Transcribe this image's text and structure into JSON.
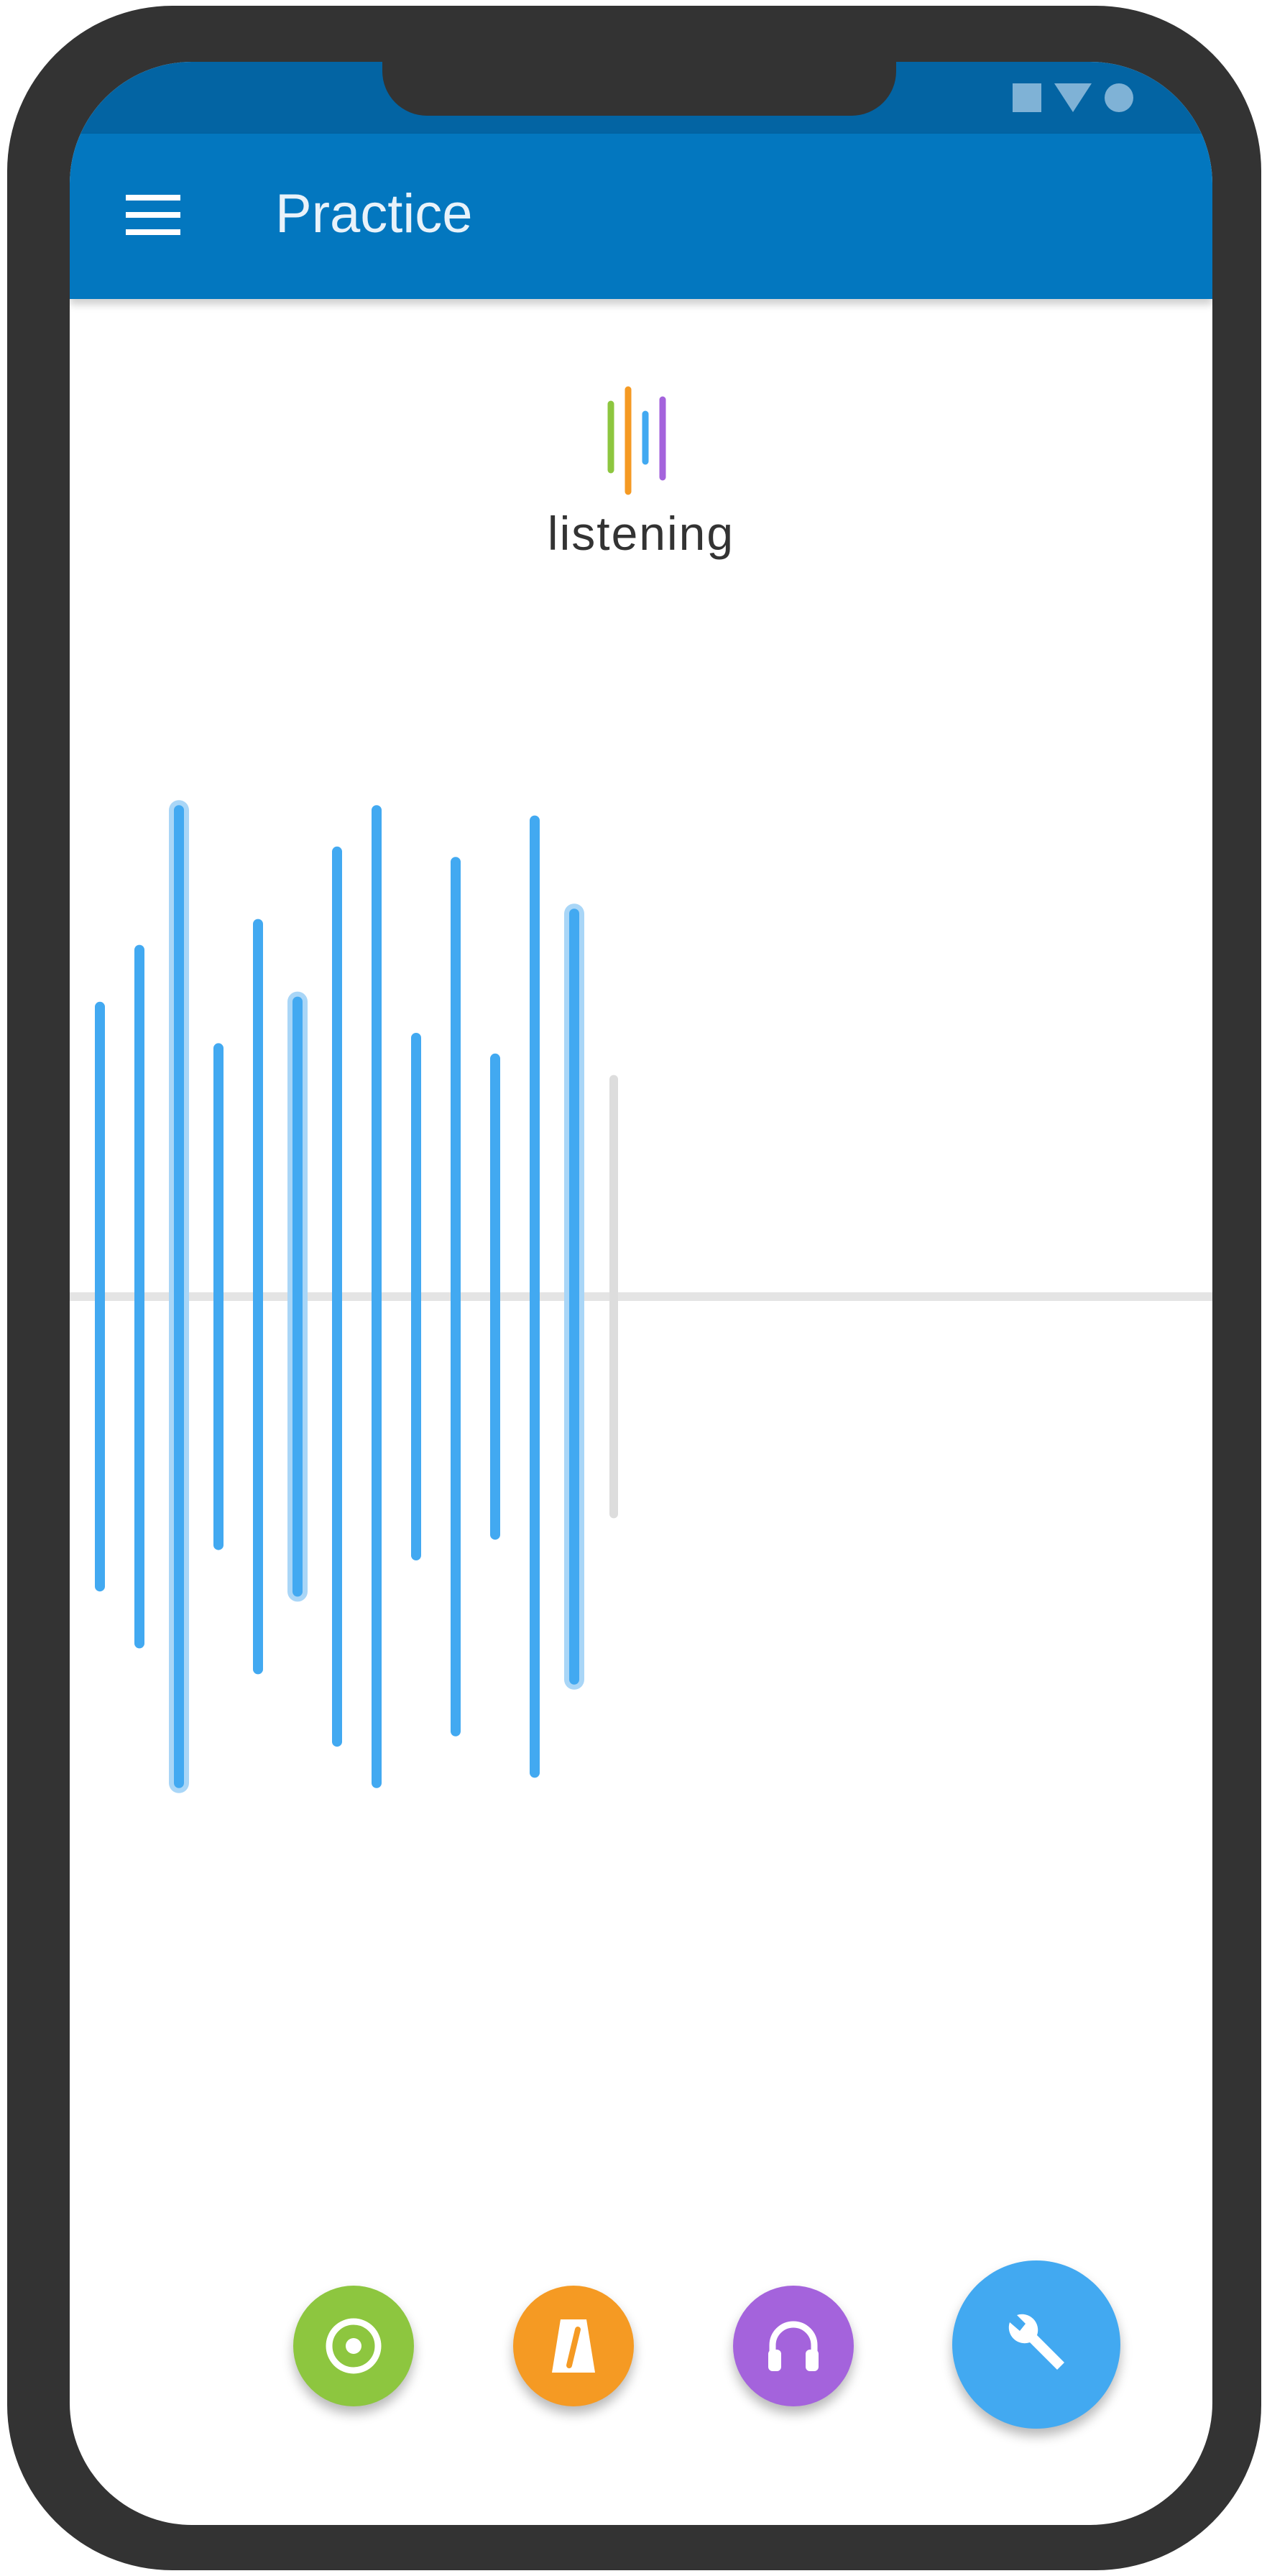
{
  "app_bar": {
    "title": "Practice",
    "menu_icon": "menu-icon"
  },
  "status_bar": {
    "icons": [
      "square-icon",
      "wifi-triangle-icon",
      "circle-icon"
    ]
  },
  "status": {
    "label": "listening",
    "logo_icon": "listening-bars-icon",
    "logo_colors": [
      "#8dc63f",
      "#f59a23",
      "#42a9f1",
      "#a463dc"
    ]
  },
  "waveform": {
    "levels": [
      0.56,
      0.67,
      0.94,
      0.48,
      0.72,
      0.57,
      0.86,
      0.94,
      0.5,
      0.84,
      0.46,
      0.92,
      0.74,
      0.42
    ],
    "highlighted": [
      false,
      false,
      true,
      false,
      false,
      true,
      false,
      false,
      false,
      false,
      false,
      false,
      true,
      false
    ],
    "active_count": 13,
    "colors": {
      "active": "#42a9f1",
      "highlight": "#a9d6f7",
      "inactive": "#dddddd"
    }
  },
  "actions": {
    "tuner": {
      "icon": "tuner-target-icon",
      "color": "#8dc63f"
    },
    "metronome": {
      "icon": "metronome-icon",
      "color": "#f59a23"
    },
    "headphones": {
      "icon": "headphones-icon",
      "color": "#a463dc"
    },
    "tools": {
      "icon": "wrench-icon",
      "color": "#42a9f1"
    }
  }
}
